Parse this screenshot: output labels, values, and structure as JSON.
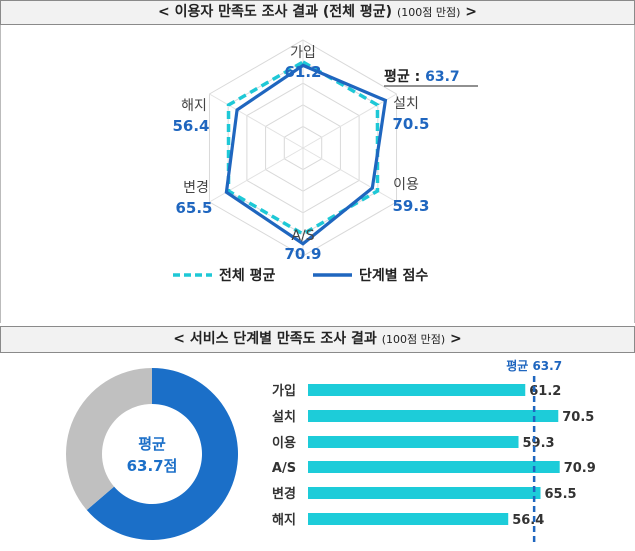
{
  "header1": {
    "title": "< 이용자 만족도 조사 결과 (전체 평균)",
    "sub": "(100점 만점)",
    "close": " >"
  },
  "header2": {
    "title": "< 서비스 단계별 만족도 조사 결과",
    "sub": "(100점 만점)",
    "close": " >"
  },
  "colors": {
    "stage": "#1f66bf",
    "avg": "#1ec8d6",
    "donut_fill": "#1b6fc8",
    "donut_rest": "#c0c0c0",
    "bar": "#1dccd9",
    "avg_line": "#1f66bf"
  },
  "radar_avg_label": "평균 : 63.7",
  "donut_label": {
    "line1": "평균",
    "line2": "63.7점"
  },
  "bar_avg_label": "평균 63.7",
  "legend": {
    "avg": "전체 평균",
    "stage": "단계별 점수"
  },
  "chart_data": [
    {
      "type": "radar",
      "categories": [
        "가입",
        "설치",
        "이용",
        "A/S",
        "변경",
        "해지"
      ],
      "series": [
        {
          "name": "전체 평균",
          "values": [
            63.7,
            63.7,
            63.7,
            63.7,
            63.7,
            63.7
          ]
        },
        {
          "name": "단계별 점수",
          "values": [
            61.2,
            70.5,
            59.3,
            70.9,
            65.5,
            56.4
          ]
        }
      ],
      "value_labels": [
        "61.2",
        "70.5",
        "59.3",
        "70.9",
        "65.5",
        "56.4"
      ],
      "rmax": 80
    },
    {
      "type": "pie",
      "value": 63.7,
      "total": 100
    },
    {
      "type": "bar",
      "orientation": "horizontal",
      "categories": [
        "가입",
        "설치",
        "이용",
        "A/S",
        "변경",
        "해지"
      ],
      "values": [
        61.2,
        70.5,
        59.3,
        70.9,
        65.5,
        56.4
      ],
      "value_labels": [
        "61.2",
        "70.5",
        "59.3",
        "70.9",
        "65.5",
        "56.4"
      ],
      "average": 63.7,
      "xlim": [
        0,
        82
      ]
    }
  ]
}
